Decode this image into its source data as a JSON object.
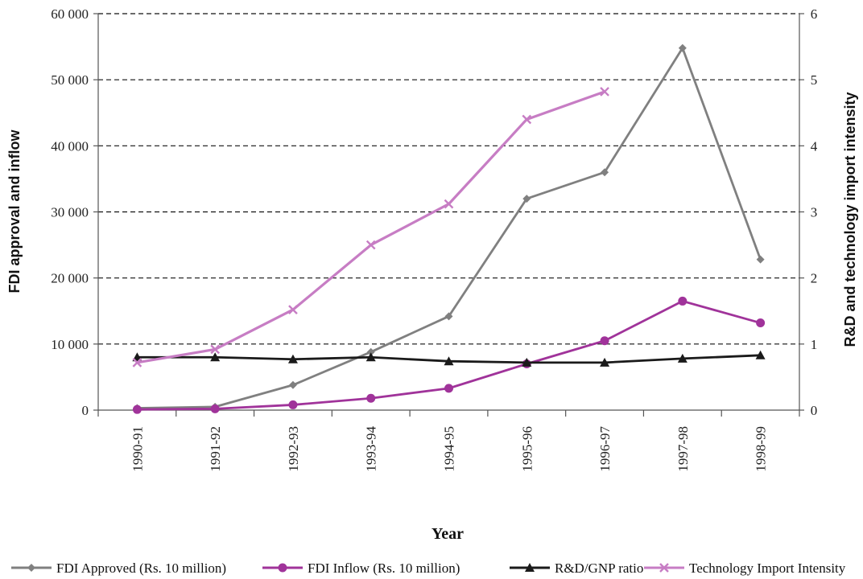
{
  "chart_data": {
    "type": "line",
    "xlabel": "Year",
    "ylabel_left": "FDI approval and inflow",
    "ylabel_right": "R&D and technology import intensity",
    "categories": [
      "1990-91",
      "1991-92",
      "1992-93",
      "1993-94",
      "1994-95",
      "1995-96",
      "1996-97",
      "1997-98",
      "1998-99"
    ],
    "ylim_left": [
      0,
      60000
    ],
    "yticks_left": [
      "0",
      "10 000",
      "20 000",
      "30 000",
      "40 000",
      "50 000",
      "60 000"
    ],
    "ylim_right": [
      0,
      6
    ],
    "yticks_right": [
      "0",
      "1",
      "2",
      "3",
      "4",
      "5",
      "6"
    ],
    "grid": "horizontal-dashed",
    "legend_position": "bottom",
    "series": [
      {
        "name": "FDI Approved (Rs. 10 million)",
        "axis": "left",
        "color": "#808080",
        "marker": "diamond",
        "values": [
          300,
          500,
          3800,
          8800,
          14200,
          32000,
          36000,
          54800,
          22800
        ]
      },
      {
        "name": "FDI Inflow (Rs. 10 million)",
        "axis": "left",
        "color": "#a0339a",
        "marker": "circle",
        "values": [
          100,
          200,
          800,
          1800,
          3300,
          7000,
          10500,
          16500,
          13200
        ]
      },
      {
        "name": "R&D/GNP ratio",
        "axis": "right",
        "color": "#1a1a1a",
        "marker": "triangle",
        "values": [
          0.8,
          0.8,
          0.77,
          0.8,
          0.74,
          0.72,
          0.72,
          0.78,
          0.83
        ]
      },
      {
        "name": "Technology Import Intensity",
        "axis": "right",
        "color": "#c77dc4",
        "marker": "x",
        "values": [
          0.72,
          0.92,
          1.52,
          2.5,
          3.12,
          4.4,
          4.82,
          null,
          null
        ]
      }
    ]
  }
}
